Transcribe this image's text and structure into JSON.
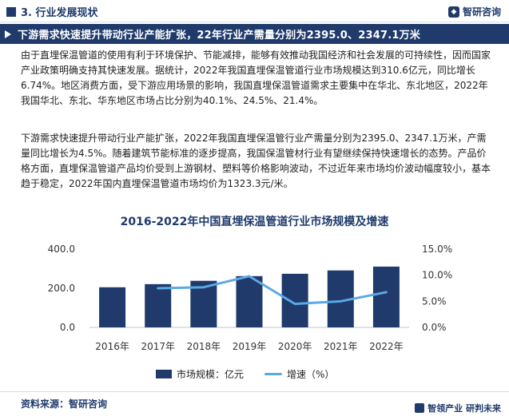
{
  "header": {
    "section_title": "3. 行业发展现状",
    "logo_text": "智研咨询"
  },
  "banner": {
    "text": "下游需求快速提升带动行业产能扩张，22年行业产需量分别为2395.0、2347.1万米"
  },
  "body": {
    "paragraph1": "由于直埋保温管道的使用有利于环境保护、节能减排，能够有效推动我国经济和社会发展的可持续性，因而国家产业政策明确支持其快速发展。据统计，2022年我国直埋保温管道行业市场规模达到310.6亿元，同比增长6.74%。地区消费方面，受下游应用场景的影响，我国直埋保温管道需求主要集中在华北、东北地区，2022年我国华北、东北、华东地区市场占比分别为40.1%、24.5%、21.4%。",
    "paragraph2": "下游需求快速提升带动行业产能扩张，2022年我国直埋保温管行业产需量分别为2395.0、2347.1万米，产需量同比增长为4.5%。随着建筑节能标准的逐步提高，我国保温管材行业有望继续保持快速增长的态势。产品价格方面，直埋保温管道产品均价受到上游钢材、塑料等价格影响波动，不过近年来市场均价波动幅度较小，基本趋于稳定，2022年国内直埋保温管道市场均价为1323.3元/米。"
  },
  "chart_data": {
    "type": "bar",
    "title": "2016-2022年中国直埋保温管道行业市场规模及增速",
    "categories": [
      "2016年",
      "2017年",
      "2018年",
      "2019年",
      "2020年",
      "2021年",
      "2022年"
    ],
    "series": [
      {
        "name": "市场规模：亿元",
        "type": "bar",
        "axis": "left",
        "values": [
          205,
          221,
          238,
          262,
          274,
          291,
          310.6
        ],
        "color": "#1f3a6b"
      },
      {
        "name": "增速（%）",
        "type": "line",
        "axis": "right",
        "values": [
          null,
          7.5,
          7.7,
          9.8,
          4.5,
          5.0,
          6.74
        ],
        "color": "#5aa9e6"
      }
    ],
    "left_axis": {
      "ticks": [
        "0.0",
        "200.0",
        "400.0"
      ],
      "ylim": [
        0,
        400
      ]
    },
    "right_axis": {
      "ticks": [
        "0.0%",
        "5.0%",
        "10.0%",
        "15.0%"
      ],
      "ylim": [
        0,
        15
      ]
    },
    "grid": false,
    "legend": "bottom"
  },
  "footer": {
    "source": "资料来源：智研咨询",
    "slogan": "智领产业 研判未来"
  }
}
